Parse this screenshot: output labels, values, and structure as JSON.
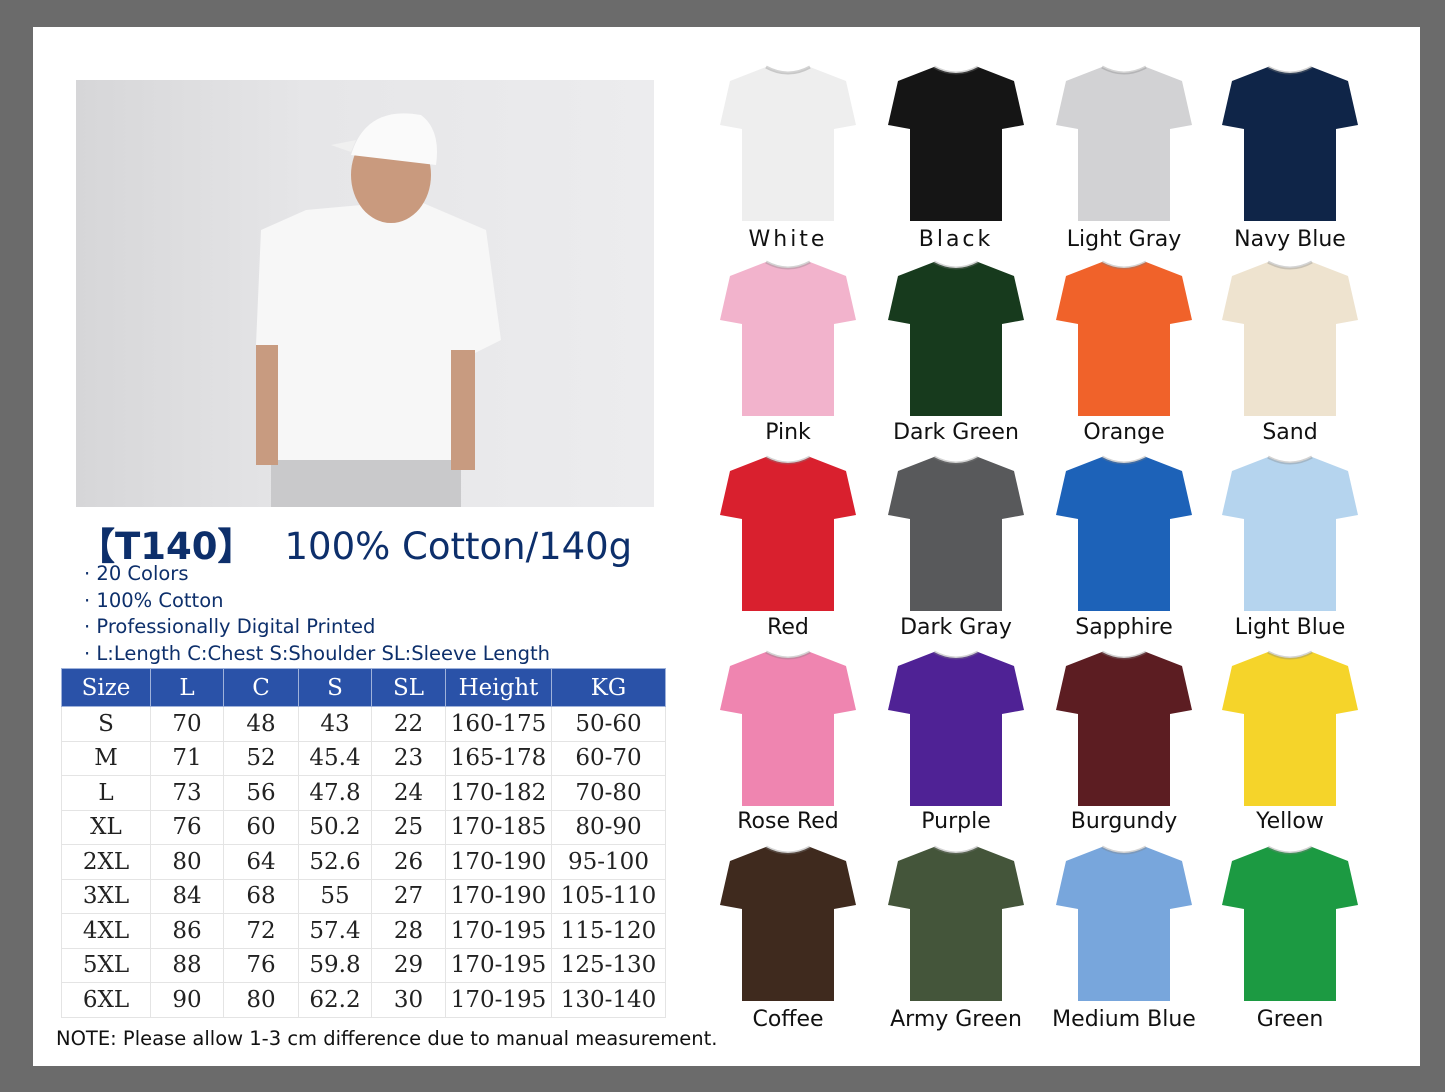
{
  "product": {
    "code": "【T140】",
    "headline": "100% Cotton/140g",
    "bullets": [
      "20 Colors",
      "100% Cotton",
      "Professionally Digital Printed",
      "L:Length C:Chest S:Shoulder SL:Sleeve Length"
    ]
  },
  "size_table": {
    "headers": [
      "Size",
      "L",
      "C",
      "S",
      "SL",
      "Height",
      "KG"
    ],
    "rows": [
      [
        "S",
        "70",
        "48",
        "43",
        "22",
        "160-175",
        "50-60"
      ],
      [
        "M",
        "71",
        "52",
        "45.4",
        "23",
        "165-178",
        "60-70"
      ],
      [
        "L",
        "73",
        "56",
        "47.8",
        "24",
        "170-182",
        "70-80"
      ],
      [
        "XL",
        "76",
        "60",
        "50.2",
        "25",
        "170-185",
        "80-90"
      ],
      [
        "2XL",
        "80",
        "64",
        "52.6",
        "26",
        "170-190",
        "95-100"
      ],
      [
        "3XL",
        "84",
        "68",
        "55",
        "27",
        "170-190",
        "105-110"
      ],
      [
        "4XL",
        "86",
        "72",
        "57.4",
        "28",
        "170-195",
        "115-120"
      ],
      [
        "5XL",
        "88",
        "76",
        "59.8",
        "29",
        "170-195",
        "125-130"
      ],
      [
        "6XL",
        "90",
        "80",
        "62.2",
        "30",
        "170-195",
        "130-140"
      ]
    ]
  },
  "note": "NOTE:  Please allow 1-3 cm difference due to manual measurement.",
  "colors": [
    {
      "name": "White",
      "hex": "#eeeeee"
    },
    {
      "name": "Black",
      "hex": "#151515"
    },
    {
      "name": "Light Gray",
      "hex": "#d2d2d4"
    },
    {
      "name": "Navy Blue",
      "hex": "#0f2548"
    },
    {
      "name": "Pink",
      "hex": "#f2b3cc"
    },
    {
      "name": "Dark Green",
      "hex": "#173a1d"
    },
    {
      "name": "Orange",
      "hex": "#f0622a"
    },
    {
      "name": "Sand",
      "hex": "#eee3cf"
    },
    {
      "name": "Red",
      "hex": "#d9202e"
    },
    {
      "name": "Dark Gray",
      "hex": "#58595b"
    },
    {
      "name": "Sapphire",
      "hex": "#1d62b8"
    },
    {
      "name": "Light Blue",
      "hex": "#b5d4ee"
    },
    {
      "name": "Rose Red",
      "hex": "#ef85b0"
    },
    {
      "name": "Purple",
      "hex": "#4f2295"
    },
    {
      "name": "Burgundy",
      "hex": "#5c1d22"
    },
    {
      "name": "Yellow",
      "hex": "#f5d42a"
    },
    {
      "name": "Coffee",
      "hex": "#3f2a1e"
    },
    {
      "name": "Army Green",
      "hex": "#44553a"
    },
    {
      "name": "Medium Blue",
      "hex": "#78a6dc"
    },
    {
      "name": "Green",
      "hex": "#1c9a42"
    }
  ]
}
